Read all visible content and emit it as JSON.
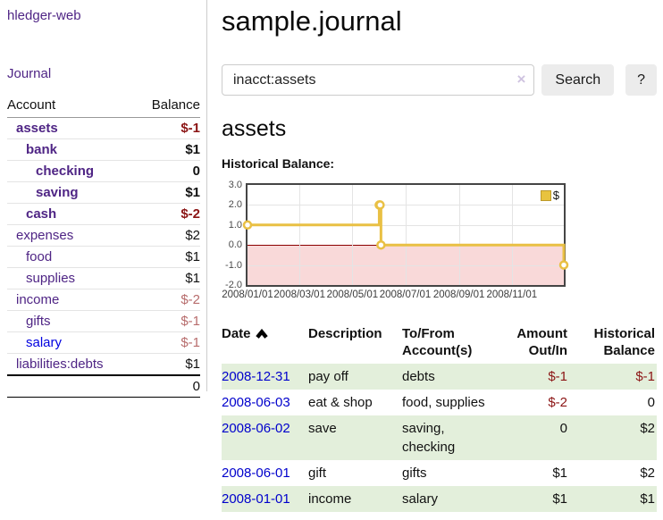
{
  "app": {
    "title": "hledger-web",
    "nav_journal": "Journal"
  },
  "sidebar": {
    "header": {
      "account": "Account",
      "balance": "Balance"
    },
    "accounts": [
      {
        "name": "assets",
        "depth": 0,
        "balance": "$-1",
        "bold": true,
        "tone": "neg",
        "link_color": "purple"
      },
      {
        "name": "bank",
        "depth": 1,
        "balance": "$1",
        "bold": true,
        "tone": "",
        "link_color": "purple"
      },
      {
        "name": "checking",
        "depth": 2,
        "balance": "0",
        "bold": true,
        "tone": "",
        "link_color": "purple"
      },
      {
        "name": "saving",
        "depth": 2,
        "balance": "$1",
        "bold": true,
        "tone": "",
        "link_color": "purple"
      },
      {
        "name": "cash",
        "depth": 1,
        "balance": "$-2",
        "bold": true,
        "tone": "neg",
        "link_color": "purple"
      },
      {
        "name": "expenses",
        "depth": 0,
        "balance": "$2",
        "bold": false,
        "tone": "",
        "link_color": "purple"
      },
      {
        "name": "food",
        "depth": 1,
        "balance": "$1",
        "bold": false,
        "tone": "",
        "link_color": "purple"
      },
      {
        "name": "supplies",
        "depth": 1,
        "balance": "$1",
        "bold": false,
        "tone": "",
        "link_color": "purple"
      },
      {
        "name": "income",
        "depth": 0,
        "balance": "$-2",
        "bold": false,
        "tone": "neg-dim",
        "link_color": "purple"
      },
      {
        "name": "gifts",
        "depth": 1,
        "balance": "$-1",
        "bold": false,
        "tone": "neg-dim",
        "link_color": "purple"
      },
      {
        "name": "salary",
        "depth": 1,
        "balance": "$-1",
        "bold": false,
        "tone": "neg-dim",
        "link_color": "blue"
      },
      {
        "name": "liabilities:debts",
        "depth": 0,
        "balance": "$1",
        "bold": false,
        "tone": "",
        "link_color": "purple"
      }
    ],
    "total": "0"
  },
  "main": {
    "title": "sample.journal",
    "search": {
      "value": "inacct:assets",
      "clear_icon": "×",
      "button_label": "Search",
      "help_label": "?"
    },
    "account_heading": "assets",
    "chart_label": "Historical Balance:"
  },
  "chart_data": {
    "type": "line",
    "title": "Historical Balance:",
    "step": true,
    "xrange": [
      "2008-01-01",
      "2008-12-31"
    ],
    "ylim": [
      -2,
      3
    ],
    "yticks": [
      3.0,
      2.0,
      1.0,
      0.0,
      -1.0,
      -2.0
    ],
    "ytick_labels": [
      "3.0",
      "2.0",
      "1.0",
      "0.0",
      "-1.0",
      "-2.0"
    ],
    "xticks": [
      {
        "label": "2008/01/01",
        "date": "2008-01-01"
      },
      {
        "label": "2008/03/01",
        "date": "2008-03-01"
      },
      {
        "label": "2008/05/01",
        "date": "2008-05-01"
      },
      {
        "label": "2008/07/01",
        "date": "2008-07-01"
      },
      {
        "label": "2008/09/01",
        "date": "2008-09-01"
      },
      {
        "label": "2008/11/01",
        "date": "2008-11-01"
      }
    ],
    "series": [
      {
        "name": "$",
        "points": [
          [
            "2008-01-01",
            1
          ],
          [
            "2008-06-01",
            2
          ],
          [
            "2008-06-02",
            2
          ],
          [
            "2008-06-03",
            0
          ],
          [
            "2008-12-31",
            -1
          ]
        ]
      }
    ],
    "legend": {
      "label": "$",
      "position": "top-right"
    },
    "colors": {
      "line": "#e9c044",
      "marker_fill": "#ffffff",
      "negative_region": "#f9d9d9",
      "zero_line": "#8b0000",
      "grid": "#e4e4e4",
      "border": "#454545"
    },
    "grid": true
  },
  "register": {
    "headers": {
      "date": "Date",
      "description": "Description",
      "accounts": "To/From Account(s)",
      "amount": "Amount Out/In",
      "balance": "Historical Balance"
    },
    "rows": [
      {
        "date": "2008-12-31",
        "description": "pay off",
        "accounts": "debts",
        "amount": "$-1",
        "balance": "$-1",
        "amount_neg": true,
        "balance_neg": true
      },
      {
        "date": "2008-06-03",
        "description": "eat & shop",
        "accounts": "food, supplies",
        "amount": "$-2",
        "balance": "0",
        "amount_neg": true,
        "balance_neg": false
      },
      {
        "date": "2008-06-02",
        "description": "save",
        "accounts": "saving, checking",
        "amount": "0",
        "balance": "$2",
        "amount_neg": false,
        "balance_neg": false
      },
      {
        "date": "2008-06-01",
        "description": "gift",
        "accounts": "gifts",
        "amount": "$1",
        "balance": "$2",
        "amount_neg": false,
        "balance_neg": false
      },
      {
        "date": "2008-01-01",
        "description": "income",
        "accounts": "salary",
        "amount": "$1",
        "balance": "$1",
        "amount_neg": false,
        "balance_neg": false
      }
    ]
  }
}
